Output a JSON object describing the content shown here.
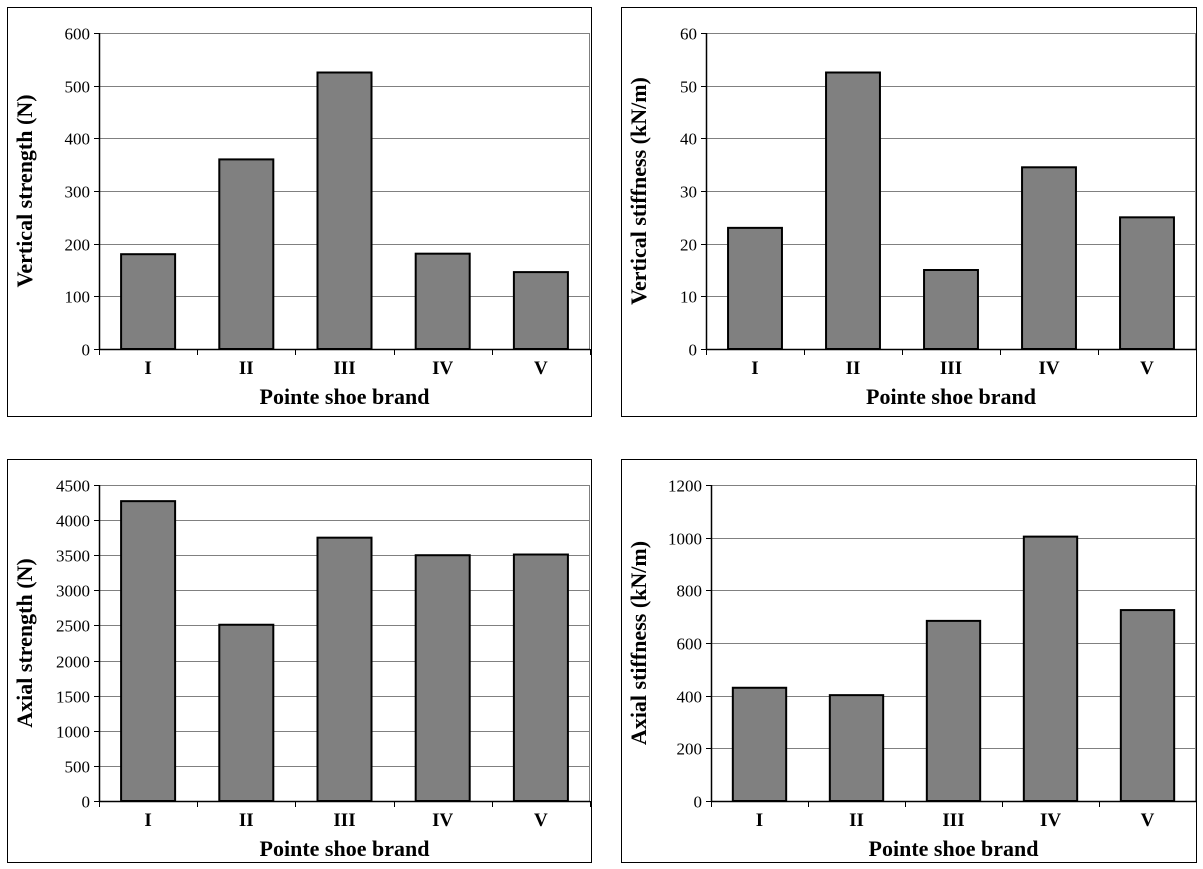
{
  "chart_data": [
    {
      "type": "bar",
      "categories": [
        "I",
        "II",
        "III",
        "IV",
        "V"
      ],
      "values": [
        180,
        360,
        525,
        181,
        146
      ],
      "xlabel": "Pointe shoe brand",
      "ylabel": "Vertical strength (N)",
      "ylim": [
        0,
        600
      ],
      "yticks": [
        0,
        100,
        200,
        300,
        400,
        500,
        600
      ],
      "grid": true,
      "bar_color": "#808080"
    },
    {
      "type": "bar",
      "categories": [
        "I",
        "II",
        "III",
        "IV",
        "V"
      ],
      "values": [
        23,
        52.5,
        15,
        34.5,
        25
      ],
      "xlabel": "Pointe shoe brand",
      "ylabel": "Vertical stiffness (kN/m)",
      "ylim": [
        0,
        60
      ],
      "yticks": [
        0,
        10,
        20,
        30,
        40,
        50,
        60
      ],
      "grid": true,
      "bar_color": "#808080"
    },
    {
      "type": "bar",
      "categories": [
        "I",
        "II",
        "III",
        "IV",
        "V"
      ],
      "values": [
        4270,
        2510,
        3750,
        3500,
        3510
      ],
      "xlabel": "Pointe shoe brand",
      "ylabel": "Axial strength (N)",
      "ylim": [
        0,
        4500
      ],
      "yticks": [
        0,
        500,
        1000,
        1500,
        2000,
        2500,
        3000,
        3500,
        4000,
        4500
      ],
      "grid": true,
      "bar_color": "#808080"
    },
    {
      "type": "bar",
      "categories": [
        "I",
        "II",
        "III",
        "IV",
        "V"
      ],
      "values": [
        430,
        402,
        684,
        1004,
        725
      ],
      "xlabel": "Pointe shoe brand",
      "ylabel": "Axial stiffness (kN/m)",
      "ylim": [
        0,
        1200
      ],
      "yticks": [
        0,
        200,
        400,
        600,
        800,
        1000,
        1200
      ],
      "grid": true,
      "bar_color": "#808080"
    }
  ]
}
